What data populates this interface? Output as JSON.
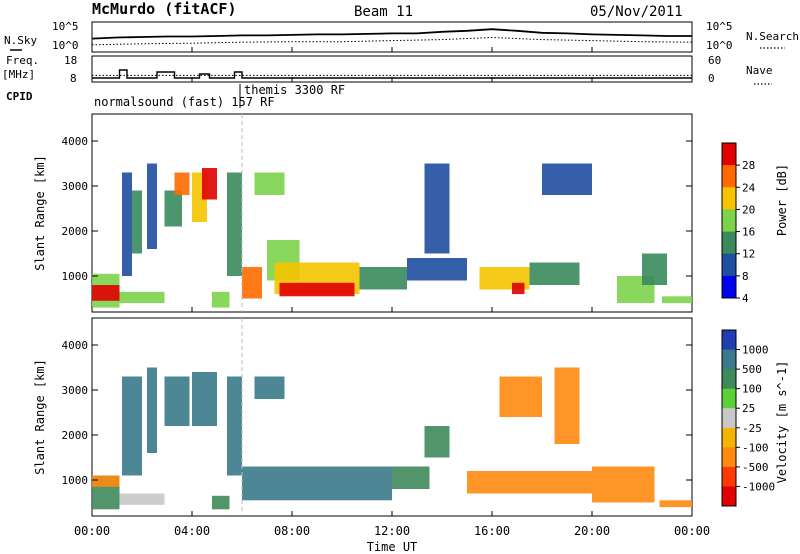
{
  "header": {
    "station": "McMurdo (fitACF)",
    "beam": "Beam 11",
    "date": "05/Nov/2011"
  },
  "time_axis": {
    "label": "Time UT",
    "ticks": [
      "00:00",
      "04:00",
      "08:00",
      "12:00",
      "16:00",
      "20:00",
      "00:00"
    ],
    "hours": [
      0,
      4,
      8,
      12,
      16,
      20,
      24
    ]
  },
  "noise_panel": {
    "left_label": "N.Sky",
    "right_label": "N.Search",
    "left_ticks": [
      "10^5",
      "10^0"
    ],
    "right_ticks": [
      "10^5",
      "10^0"
    ]
  },
  "freq_panel": {
    "left_label_1": "Freq.",
    "left_label_2": "[MHz]",
    "left_ticks": [
      "18",
      "8"
    ],
    "right_label": "Nave",
    "right_ticks": [
      "60",
      "0"
    ]
  },
  "cpid": {
    "label": "CPID",
    "mode1": "normalsound (fast) 157 RF",
    "mode2": "themis 3300 RF"
  },
  "power_panel": {
    "ylabel": "Slant Range [km]",
    "yticks": [
      1000,
      2000,
      3000,
      4000
    ],
    "ylim": [
      200,
      4600
    ],
    "colorbar_label": "Power [dB]",
    "colorbar_ticks": [
      "28",
      "24",
      "20",
      "16",
      "12",
      "8",
      "4"
    ],
    "colors": [
      "#e00000",
      "#ff6a00",
      "#f5c400",
      "#7cd34a",
      "#3a8a5c",
      "#1f4fa0",
      "#0000f0"
    ]
  },
  "velocity_panel": {
    "ylabel": "Slant Range [km]",
    "yticks": [
      1000,
      2000,
      3000,
      4000
    ],
    "ylim": [
      200,
      4600
    ],
    "colorbar_label": "Velocity [m s^-1]",
    "colorbar_ticks": [
      "1000",
      "500",
      "100",
      "25",
      "-25",
      "-100",
      "-500",
      "-1000"
    ],
    "colors": [
      "#1f3fb0",
      "#3a7a8a",
      "#3f8a5a",
      "#5ccf3a",
      "#c8c8c8",
      "#f5b400",
      "#ff8a10",
      "#ff3a00",
      "#e00000"
    ]
  },
  "chart_data": {
    "type": "heatmap",
    "x_unit": "hours UT",
    "y_unit": "km",
    "noise": {
      "sky_log10": [
        [
          0,
          2.2
        ],
        [
          1,
          2.4
        ],
        [
          2,
          2.5
        ],
        [
          3,
          2.6
        ],
        [
          4,
          2.6
        ],
        [
          5,
          2.7
        ],
        [
          6,
          2.8
        ],
        [
          7,
          2.8
        ],
        [
          8,
          2.9
        ],
        [
          9,
          3.0
        ],
        [
          10,
          3.0
        ],
        [
          11,
          3.1
        ],
        [
          12,
          3.2
        ],
        [
          13,
          3.2
        ],
        [
          14,
          3.5
        ],
        [
          15,
          3.7
        ],
        [
          16,
          4.0
        ],
        [
          17,
          3.7
        ],
        [
          18,
          3.3
        ],
        [
          19,
          3.2
        ],
        [
          20,
          3.0
        ],
        [
          21,
          2.9
        ],
        [
          22,
          2.8
        ],
        [
          23,
          2.7
        ],
        [
          24,
          2.7
        ]
      ],
      "search_log10": [
        [
          0,
          1.0
        ],
        [
          2,
          1.2
        ],
        [
          4,
          1.3
        ],
        [
          6,
          1.5
        ],
        [
          8,
          1.6
        ],
        [
          10,
          1.6
        ],
        [
          12,
          1.8
        ],
        [
          14,
          2.0
        ],
        [
          16,
          2.4
        ],
        [
          18,
          2.0
        ],
        [
          20,
          1.8
        ],
        [
          22,
          1.6
        ],
        [
          24,
          1.5
        ]
      ]
    },
    "freq_steps": [
      [
        0,
        9
      ],
      [
        1.1,
        13
      ],
      [
        1.4,
        9
      ],
      [
        2.1,
        9
      ],
      [
        2.6,
        12
      ],
      [
        3.1,
        12
      ],
      [
        3.3,
        9
      ],
      [
        4.3,
        11
      ],
      [
        4.7,
        9
      ],
      [
        5.7,
        12
      ],
      [
        6,
        9
      ],
      [
        24,
        9
      ]
    ],
    "nave_level": 18,
    "power_blobs": [
      {
        "t0": 0.0,
        "t1": 1.1,
        "r0": 300,
        "r1": 1050,
        "v": 16
      },
      {
        "t0": 0.0,
        "t1": 1.1,
        "r0": 450,
        "r1": 800,
        "v": 26
      },
      {
        "t0": 1.1,
        "t1": 2.9,
        "r0": 400,
        "r1": 650,
        "v": 14
      },
      {
        "t0": 1.2,
        "t1": 1.6,
        "r0": 1000,
        "r1": 3300,
        "v": 8
      },
      {
        "t0": 1.6,
        "t1": 2.0,
        "r0": 1500,
        "r1": 2900,
        "v": 10
      },
      {
        "t0": 2.2,
        "t1": 2.6,
        "r0": 1600,
        "r1": 3500,
        "v": 8
      },
      {
        "t0": 2.9,
        "t1": 3.6,
        "r0": 2100,
        "r1": 2900,
        "v": 12
      },
      {
        "t0": 3.3,
        "t1": 3.9,
        "r0": 2800,
        "r1": 3300,
        "v": 24
      },
      {
        "t0": 4.0,
        "t1": 4.6,
        "r0": 2200,
        "r1": 3300,
        "v": 20
      },
      {
        "t0": 4.4,
        "t1": 5.0,
        "r0": 2700,
        "r1": 3400,
        "v": 26
      },
      {
        "t0": 4.8,
        "t1": 5.5,
        "r0": 300,
        "r1": 650,
        "v": 14
      },
      {
        "t0": 5.4,
        "t1": 6.0,
        "r0": 1000,
        "r1": 3300,
        "v": 10
      },
      {
        "t0": 6.0,
        "t1": 6.8,
        "r0": 500,
        "r1": 1200,
        "v": 24
      },
      {
        "t0": 6.5,
        "t1": 7.7,
        "r0": 2800,
        "r1": 3300,
        "v": 16
      },
      {
        "t0": 7.0,
        "t1": 8.3,
        "r0": 900,
        "r1": 1800,
        "v": 16
      },
      {
        "t0": 7.3,
        "t1": 10.7,
        "r0": 600,
        "r1": 1300,
        "v": 20
      },
      {
        "t0": 7.5,
        "t1": 10.5,
        "r0": 550,
        "r1": 850,
        "v": 28
      },
      {
        "t0": 10.7,
        "t1": 12.6,
        "r0": 700,
        "r1": 1200,
        "v": 12
      },
      {
        "t0": 12.6,
        "t1": 15.0,
        "r0": 900,
        "r1": 1400,
        "v": 8
      },
      {
        "t0": 13.3,
        "t1": 14.3,
        "r0": 1500,
        "r1": 3500,
        "v": 6
      },
      {
        "t0": 15.5,
        "t1": 17.5,
        "r0": 700,
        "r1": 1200,
        "v": 20
      },
      {
        "t0": 16.8,
        "t1": 17.3,
        "r0": 600,
        "r1": 850,
        "v": 28
      },
      {
        "t0": 17.5,
        "t1": 19.5,
        "r0": 800,
        "r1": 1300,
        "v": 10
      },
      {
        "t0": 18.0,
        "t1": 20.0,
        "r0": 2800,
        "r1": 3500,
        "v": 6
      },
      {
        "t0": 21.0,
        "t1": 22.5,
        "r0": 400,
        "r1": 1000,
        "v": 16
      },
      {
        "t0": 22.0,
        "t1": 23.0,
        "r0": 800,
        "r1": 1500,
        "v": 12
      },
      {
        "t0": 22.8,
        "t1": 24.0,
        "r0": 400,
        "r1": 550,
        "v": 14
      }
    ],
    "velocity_blobs": [
      {
        "t0": 0.0,
        "t1": 1.1,
        "r0": 350,
        "r1": 1100,
        "v": 100
      },
      {
        "t0": 0.0,
        "t1": 1.1,
        "r0": 850,
        "r1": 1100,
        "v": -300
      },
      {
        "t0": 1.1,
        "t1": 2.9,
        "r0": 450,
        "r1": 700,
        "v": 20
      },
      {
        "t0": 1.2,
        "t1": 2.0,
        "r0": 1100,
        "r1": 3300,
        "v": 400
      },
      {
        "t0": 2.2,
        "t1": 2.6,
        "r0": 1600,
        "r1": 3500,
        "v": 400
      },
      {
        "t0": 2.9,
        "t1": 3.9,
        "r0": 2200,
        "r1": 3300,
        "v": 300
      },
      {
        "t0": 4.0,
        "t1": 5.0,
        "r0": 2200,
        "r1": 3400,
        "v": 600
      },
      {
        "t0": 4.8,
        "t1": 5.5,
        "r0": 350,
        "r1": 650,
        "v": 60
      },
      {
        "t0": 5.4,
        "t1": 6.0,
        "r0": 1100,
        "r1": 3300,
        "v": 400
      },
      {
        "t0": 6.0,
        "t1": 12.0,
        "r0": 550,
        "r1": 1300,
        "v": 300
      },
      {
        "t0": 6.5,
        "t1": 7.7,
        "r0": 2800,
        "r1": 3300,
        "v": 400
      },
      {
        "t0": 12.0,
        "t1": 13.5,
        "r0": 800,
        "r1": 1300,
        "v": 60
      },
      {
        "t0": 13.3,
        "t1": 14.3,
        "r0": 1500,
        "r1": 2200,
        "v": 60
      },
      {
        "t0": 15.0,
        "t1": 20.0,
        "r0": 700,
        "r1": 1200,
        "v": -300
      },
      {
        "t0": 16.3,
        "t1": 18.0,
        "r0": 2400,
        "r1": 3300,
        "v": -300
      },
      {
        "t0": 18.5,
        "t1": 19.5,
        "r0": 1800,
        "r1": 3500,
        "v": -300
      },
      {
        "t0": 20.0,
        "t1": 22.5,
        "r0": 500,
        "r1": 1300,
        "v": -300
      },
      {
        "t0": 22.7,
        "t1": 24.0,
        "r0": 400,
        "r1": 550,
        "v": -300
      }
    ]
  }
}
